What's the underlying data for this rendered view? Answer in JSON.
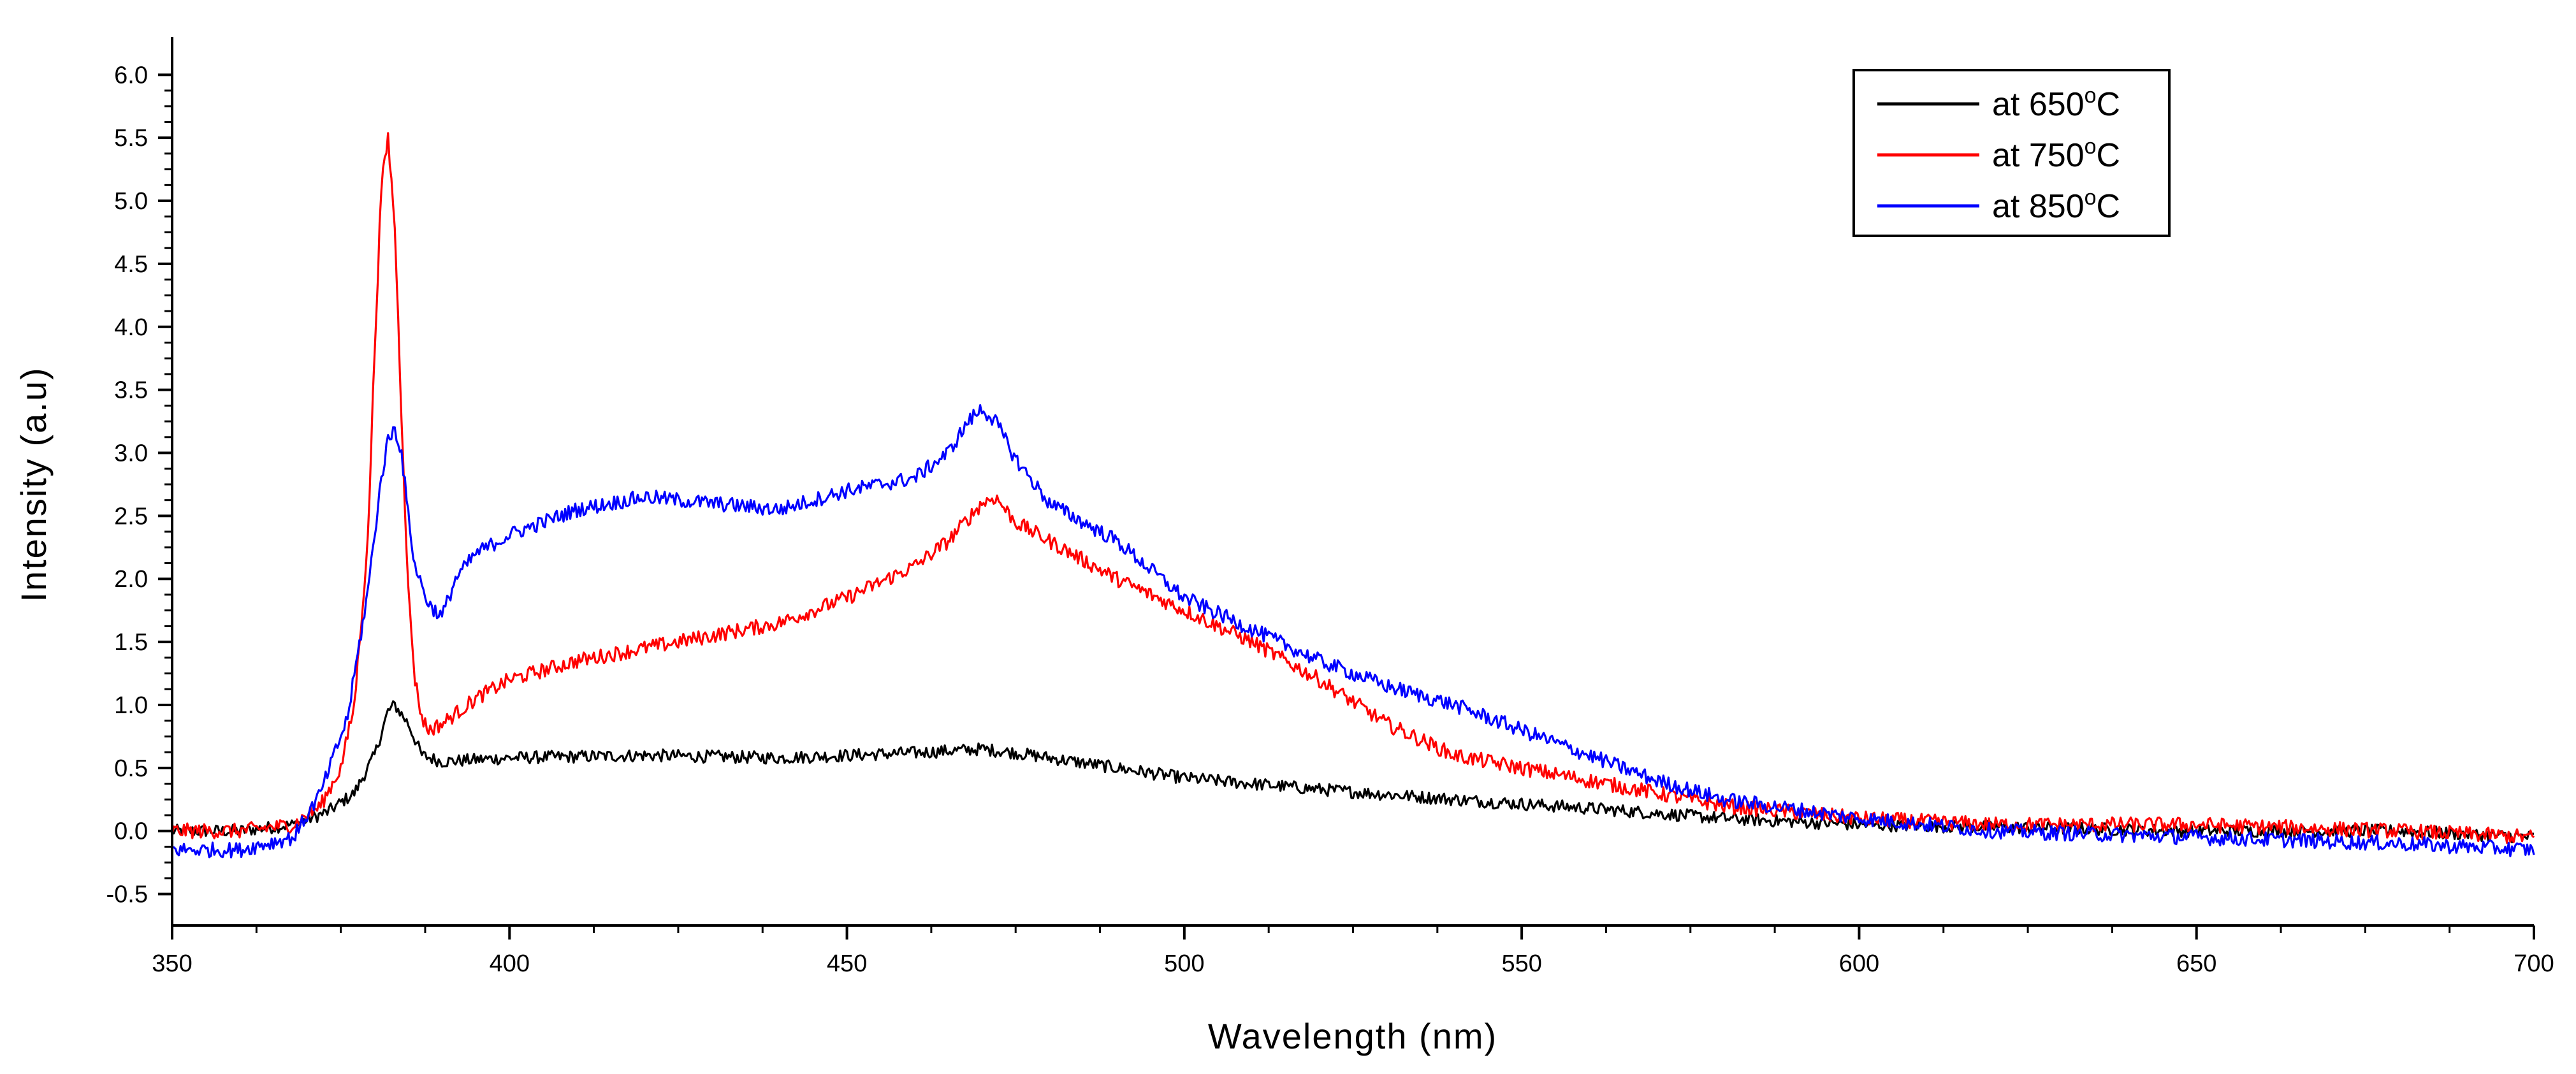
{
  "chart_data": {
    "type": "line",
    "title": "",
    "xlabel": "Wavelength (nm)",
    "ylabel": "Intensity (a.u)",
    "xlim": [
      350,
      700
    ],
    "ylim": [
      -0.75,
      6.3
    ],
    "x_ticks": [
      350,
      400,
      450,
      500,
      550,
      600,
      650,
      700
    ],
    "x_tick_labels": [
      "350",
      "400",
      "450",
      "500",
      "550",
      "600",
      "650",
      "700"
    ],
    "y_ticks": [
      -0.5,
      0.0,
      0.5,
      1.0,
      1.5,
      2.0,
      2.5,
      3.0,
      3.5,
      4.0,
      4.5,
      5.0,
      5.5,
      6.0
    ],
    "y_tick_labels": [
      "-0.5",
      "0.0",
      "0.5",
      "1.0",
      "1.5",
      "2.0",
      "2.5",
      "3.0",
      "3.5",
      "4.0",
      "4.5",
      "5.0",
      "5.5",
      "6.0"
    ],
    "grid": false,
    "legend_position": "top-right",
    "series": [
      {
        "name": "at 650°C",
        "legend_label": "at 650",
        "color": "#000000",
        "noise": 0.05,
        "x": [
          350,
          360,
          368,
          373,
          377,
          380,
          382,
          383,
          385,
          387,
          390,
          400,
          420,
          440,
          460,
          470,
          475,
          490,
          500,
          520,
          540,
          560,
          580,
          600,
          620,
          650,
          680,
          700
        ],
        "values": [
          0.0,
          0.0,
          0.05,
          0.15,
          0.3,
          0.6,
          0.95,
          1.0,
          0.85,
          0.6,
          0.55,
          0.58,
          0.6,
          0.58,
          0.62,
          0.65,
          0.62,
          0.5,
          0.42,
          0.33,
          0.25,
          0.18,
          0.1,
          0.05,
          0.03,
          0.0,
          0.0,
          -0.05
        ]
      },
      {
        "name": "at 750°C",
        "legend_label": "at 750",
        "color": "#ff0000",
        "noise": 0.06,
        "x": [
          350,
          360,
          368,
          372,
          375,
          377,
          379,
          380,
          381,
          382,
          383,
          384,
          385,
          386,
          387,
          388,
          390,
          395,
          400,
          410,
          420,
          440,
          450,
          460,
          465,
          470,
          472,
          475,
          480,
          490,
          500,
          510,
          520,
          530,
          540,
          550,
          560,
          570,
          580,
          600,
          620,
          650,
          680,
          700
        ],
        "values": [
          0.0,
          0.0,
          0.05,
          0.2,
          0.5,
          1.0,
          2.3,
          3.8,
          5.1,
          5.5,
          4.8,
          3.3,
          1.9,
          1.2,
          0.9,
          0.8,
          0.85,
          1.05,
          1.2,
          1.35,
          1.45,
          1.65,
          1.85,
          2.1,
          2.3,
          2.6,
          2.65,
          2.45,
          2.3,
          2.0,
          1.75,
          1.5,
          1.2,
          0.85,
          0.6,
          0.5,
          0.4,
          0.3,
          0.2,
          0.1,
          0.05,
          0.05,
          0.0,
          -0.05
        ]
      },
      {
        "name": "at 850°C",
        "legend_label": "at 850",
        "color": "#0000ff",
        "noise": 0.06,
        "x": [
          350,
          360,
          368,
          372,
          376,
          379,
          381,
          382,
          383,
          384,
          385,
          386,
          388,
          390,
          392,
          395,
          400,
          410,
          420,
          430,
          440,
          450,
          460,
          465,
          468,
          470,
          472,
          475,
          480,
          490,
          500,
          510,
          520,
          530,
          540,
          550,
          560,
          570,
          580,
          600,
          620,
          650,
          680,
          700
        ],
        "values": [
          -0.15,
          -0.15,
          -0.05,
          0.3,
          0.9,
          1.9,
          2.8,
          3.1,
          3.2,
          3.0,
          2.5,
          2.1,
          1.8,
          1.7,
          2.0,
          2.2,
          2.35,
          2.55,
          2.65,
          2.6,
          2.55,
          2.7,
          2.8,
          3.0,
          3.25,
          3.35,
          3.25,
          2.95,
          2.6,
          2.3,
          1.85,
          1.6,
          1.35,
          1.15,
          1.0,
          0.8,
          0.6,
          0.4,
          0.25,
          0.1,
          0.0,
          -0.05,
          -0.1,
          -0.15
        ]
      }
    ],
    "legend_suffix_sup": "o",
    "legend_suffix": "C"
  }
}
